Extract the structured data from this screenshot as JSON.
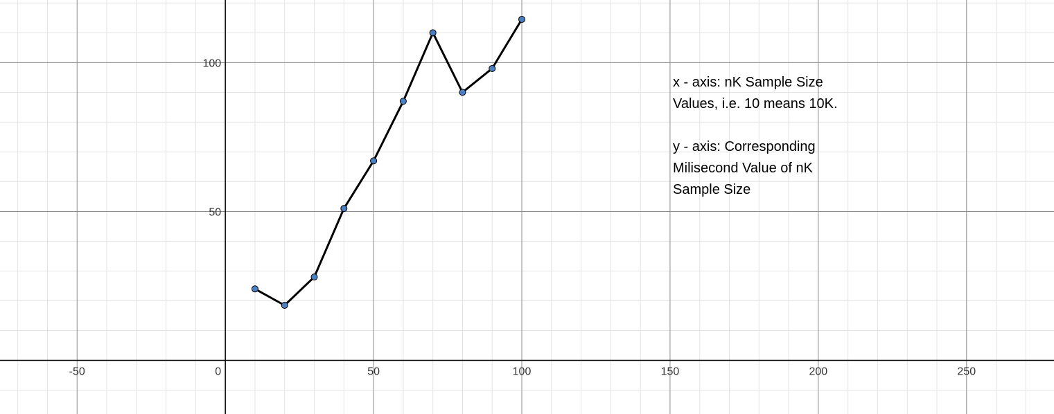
{
  "chart_data": {
    "type": "line",
    "title": "",
    "xlabel": "",
    "ylabel": "",
    "xlim": [
      -76,
      279.5
    ],
    "ylim": [
      -18,
      121
    ],
    "grid": true,
    "minor_grid_step": 10,
    "major_grid_step": 50,
    "x_ticks": [
      -50,
      0,
      50,
      100,
      150,
      200,
      250
    ],
    "y_ticks": [
      50,
      100
    ],
    "x_tick_labels": [
      "-50",
      "0",
      "50",
      "100",
      "150",
      "200",
      "250"
    ],
    "y_tick_labels": [
      "50",
      "100"
    ],
    "series": [
      {
        "x": [
          10,
          20,
          30,
          40,
          50,
          60,
          70,
          80,
          90,
          100
        ],
        "y": [
          24,
          18.5,
          28,
          51,
          67,
          87,
          110,
          90,
          98,
          114.5
        ],
        "line_color": "#000000",
        "point_color": "#4a7fc1"
      }
    ],
    "annotation": [
      "x - axis: nK Sample Size\nValues, i.e. 10 means 10K.",
      "y - axis: Corresponding\nMilisecond Value of nK\nSample Size"
    ]
  }
}
